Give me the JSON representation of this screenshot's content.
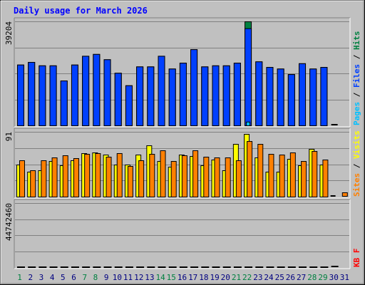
{
  "colors": {
    "background": "#c0c0c0",
    "title": "#0000ff",
    "hits": "#008040",
    "files": "#0040ff",
    "pages": "#00c0ff",
    "visits": "#ffff00",
    "sites": "#ff8000",
    "kbytes": "#ff0000",
    "weekend_label": "#008040",
    "weekday_label": "#000080"
  },
  "chart_data": {
    "type": "bar",
    "title": "Daily usage for March 2026",
    "days": [
      "1",
      "2",
      "3",
      "4",
      "5",
      "6",
      "7",
      "8",
      "9",
      "10",
      "11",
      "12",
      "13",
      "14",
      "15",
      "16",
      "17",
      "18",
      "19",
      "20",
      "21",
      "22",
      "23",
      "24",
      "25",
      "26",
      "27",
      "28",
      "29",
      "30",
      "31"
    ],
    "weekend_days": [
      "1",
      "7",
      "8",
      "14",
      "15",
      "21",
      "22",
      "28",
      "29"
    ],
    "panels": [
      {
        "name": "top",
        "ymax_label": "39204",
        "ymax": 39204,
        "legend": [
          {
            "text": "Hits",
            "color": "#008040"
          },
          {
            "text": "Files",
            "color": "#0040ff"
          },
          {
            "text": "Pages",
            "color": "#00c0ff"
          }
        ],
        "series": [
          {
            "name": "Hits",
            "color": "#008040",
            "values": [
              22900,
              23900,
              22600,
              22600,
              16900,
              22900,
              26200,
              26900,
              24900,
              19800,
              15100,
              22200,
              22200,
              26200,
              21400,
              23600,
              28700,
              22200,
              22600,
              22600,
              23600,
              39204,
              24100,
              22000,
              21400,
              19300,
              23400,
              21400,
              22000,
              0,
              0
            ]
          },
          {
            "name": "Files",
            "color": "#0040ff",
            "values": [
              22900,
              23900,
              22600,
              22600,
              16900,
              22900,
              26200,
              26900,
              24900,
              19800,
              15100,
              22200,
              22200,
              26200,
              21400,
              23600,
              28700,
              22200,
              22600,
              22600,
              23600,
              36600,
              24100,
              22000,
              21400,
              19300,
              23400,
              21400,
              22000,
              0,
              0
            ]
          },
          {
            "name": "Pages",
            "color": "#00c0ff",
            "values": [
              0,
              0,
              0,
              0,
              0,
              0,
              0,
              0,
              0,
              0,
              0,
              0,
              0,
              0,
              0,
              0,
              0,
              0,
              0,
              0,
              0,
              1400,
              0,
              0,
              0,
              0,
              0,
              0,
              0,
              0,
              0
            ]
          }
        ]
      },
      {
        "name": "middle",
        "ymax_label": "91",
        "ymax": 91,
        "legend": [
          {
            "text": "Visits",
            "color": "#ffff00"
          },
          {
            "text": "Sites",
            "color": "#ff8000"
          }
        ],
        "series": [
          {
            "name": "Visits",
            "color": "#ffff00",
            "values": [
              45,
              35,
              37,
              50,
              44,
              51,
              61,
              62,
              59,
              45,
              45,
              59,
              72,
              50,
              42,
              59,
              57,
              44,
              52,
              37,
              74,
              88,
              55,
              35,
              35,
              53,
              44,
              67,
              45,
              0,
              0
            ]
          },
          {
            "name": "Sites",
            "color": "#ff8000",
            "values": [
              51,
              37,
              51,
              55,
              58,
              54,
              60,
              61,
              56,
              61,
              43,
              51,
              60,
              65,
              50,
              58,
              65,
              56,
              55,
              55,
              51,
              78,
              74,
              60,
              59,
              62,
              50,
              64,
              52,
              0,
              0
            ]
          }
        ]
      },
      {
        "name": "bottom",
        "ymax_label": "44742460",
        "ymax": 44742460,
        "legend": [
          {
            "text": "KB F",
            "color": "#ff0000"
          }
        ],
        "series": [
          {
            "name": "KB F",
            "color": "#ff0000",
            "values": [
              33000,
              34800,
              33600,
              33600,
              25300,
              33300,
              36700,
              36700,
              35600,
              22900,
              15700,
              32300,
              31700,
              33300,
              28500,
              30500,
              37700,
              30800,
              30800,
              30000,
              30200,
              48500,
              31800,
              29200,
              26400,
              23700,
              29600,
              21100,
              26900,
              0,
              0
            ]
          }
        ]
      }
    ]
  }
}
